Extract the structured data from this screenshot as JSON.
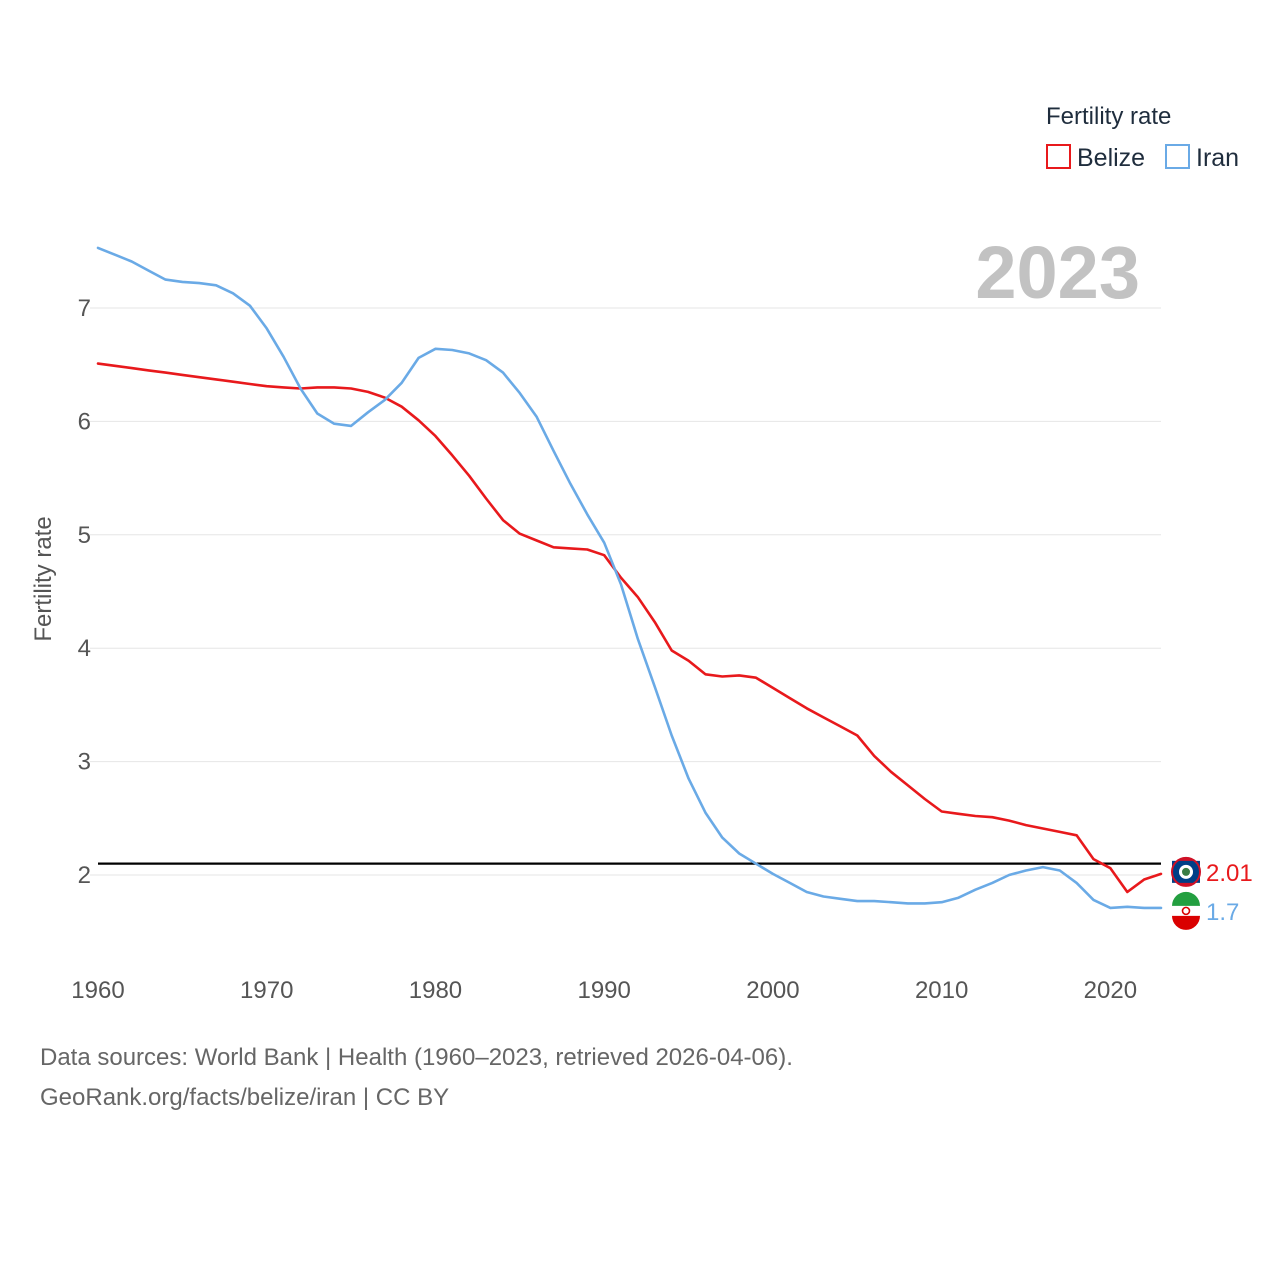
{
  "chart_data": {
    "type": "line",
    "title": "Fertility rate",
    "year_label": "2023",
    "ylabel": "Fertility rate",
    "xlabel": "",
    "xlim": [
      1960,
      2023
    ],
    "ylim": [
      1.3,
      7.6
    ],
    "xticks": [
      1960,
      1970,
      1980,
      1990,
      2000,
      2010,
      2020
    ],
    "yticks": [
      2,
      3,
      4,
      5,
      6,
      7
    ],
    "reference_line": {
      "value": 2.1,
      "color": "#000000"
    },
    "legend": {
      "title": "Fertility rate",
      "position": "top-right"
    },
    "series": [
      {
        "name": "Belize",
        "color": "#e8191c",
        "end_label": "2.01",
        "x": [
          1960,
          1961,
          1962,
          1963,
          1964,
          1965,
          1966,
          1967,
          1968,
          1969,
          1970,
          1971,
          1972,
          1973,
          1974,
          1975,
          1976,
          1977,
          1978,
          1979,
          1980,
          1981,
          1982,
          1983,
          1984,
          1985,
          1986,
          1987,
          1988,
          1989,
          1990,
          1991,
          1992,
          1993,
          1994,
          1995,
          1996,
          1997,
          1998,
          1999,
          2000,
          2001,
          2002,
          2003,
          2004,
          2005,
          2006,
          2007,
          2008,
          2009,
          2010,
          2011,
          2012,
          2013,
          2014,
          2015,
          2016,
          2017,
          2018,
          2019,
          2020,
          2021,
          2022,
          2023
        ],
        "values": [
          6.51,
          6.49,
          6.47,
          6.45,
          6.43,
          6.41,
          6.39,
          6.37,
          6.35,
          6.33,
          6.31,
          6.3,
          6.29,
          6.3,
          6.3,
          6.29,
          6.26,
          6.21,
          6.13,
          6.01,
          5.87,
          5.7,
          5.52,
          5.32,
          5.13,
          5.01,
          4.95,
          4.89,
          4.88,
          4.87,
          4.82,
          4.62,
          4.45,
          4.23,
          3.98,
          3.89,
          3.77,
          3.75,
          3.76,
          3.74,
          3.65,
          3.56,
          3.47,
          3.39,
          3.31,
          3.23,
          3.05,
          2.91,
          2.79,
          2.67,
          2.56,
          2.54,
          2.52,
          2.51,
          2.48,
          2.44,
          2.41,
          2.38,
          2.35,
          2.14,
          2.06,
          1.85,
          1.96,
          2.01
        ]
      },
      {
        "name": "Iran",
        "color": "#6aaae6",
        "end_label": "1.7",
        "x": [
          1960,
          1961,
          1962,
          1963,
          1964,
          1965,
          1966,
          1967,
          1968,
          1969,
          1970,
          1971,
          1972,
          1973,
          1974,
          1975,
          1976,
          1977,
          1978,
          1979,
          1980,
          1981,
          1982,
          1983,
          1984,
          1985,
          1986,
          1987,
          1988,
          1989,
          1990,
          1991,
          1992,
          1993,
          1994,
          1995,
          1996,
          1997,
          1998,
          1999,
          2000,
          2001,
          2002,
          2003,
          2004,
          2005,
          2006,
          2007,
          2008,
          2009,
          2010,
          2011,
          2012,
          2013,
          2014,
          2015,
          2016,
          2017,
          2018,
          2019,
          2020,
          2021,
          2022,
          2023
        ],
        "values": [
          7.53,
          7.47,
          7.41,
          7.33,
          7.25,
          7.23,
          7.22,
          7.2,
          7.13,
          7.02,
          6.82,
          6.57,
          6.29,
          6.07,
          5.98,
          5.96,
          6.08,
          6.19,
          6.34,
          6.56,
          6.64,
          6.63,
          6.6,
          6.54,
          6.43,
          6.25,
          6.04,
          5.74,
          5.45,
          5.18,
          4.93,
          4.56,
          4.08,
          3.66,
          3.23,
          2.85,
          2.55,
          2.33,
          2.19,
          2.1,
          2.01,
          1.93,
          1.85,
          1.81,
          1.79,
          1.77,
          1.77,
          1.76,
          1.75,
          1.75,
          1.76,
          1.8,
          1.87,
          1.93,
          2.0,
          2.04,
          2.07,
          2.04,
          1.93,
          1.78,
          1.71,
          1.72,
          1.71,
          1.71
        ]
      }
    ]
  },
  "footer": {
    "line1": "Data sources: World Bank | Health (1960–2023, retrieved 2026-04-06).",
    "line2": "GeoRank.org/facts/belize/iran | CC BY"
  }
}
